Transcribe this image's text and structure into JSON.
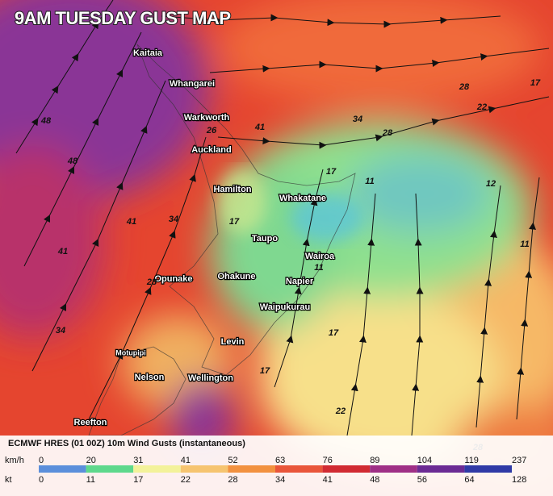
{
  "title": "9AM TUESDAY GUST MAP",
  "cities": [
    "Kaitaia",
    "Whangarei",
    "Warkworth",
    "Auckland",
    "Hamilton",
    "Whakatane",
    "Taupo",
    "Wairoa",
    "Opunake",
    "Ohakune",
    "Napier",
    "Waipukurau",
    "Levin",
    "Motupipi",
    "Nelson",
    "Wellington",
    "Reefton"
  ],
  "contour_labels": [
    48,
    48,
    41,
    34,
    41,
    34,
    28,
    17,
    41,
    34,
    28,
    22,
    17,
    28,
    17,
    11,
    12,
    11,
    11,
    17,
    22,
    28,
    26,
    17
  ],
  "legend": {
    "title": "ECMWF HRES (01 00Z) 10m Wind Gusts (instantaneous)",
    "kmh_label": "km/h",
    "kt_label": "kt",
    "kmh": [
      0,
      20,
      31,
      41,
      52,
      63,
      76,
      89,
      104,
      119,
      237
    ],
    "kt": [
      0,
      11,
      17,
      22,
      28,
      34,
      41,
      48,
      56,
      64,
      128
    ],
    "colors": [
      "#5b8fdb",
      "#5ed88c",
      "#f3f29a",
      "#f6c470",
      "#f2913f",
      "#e9553a",
      "#d12a32",
      "#9f2f86",
      "#6b2b94",
      "#2f3aa6"
    ]
  }
}
